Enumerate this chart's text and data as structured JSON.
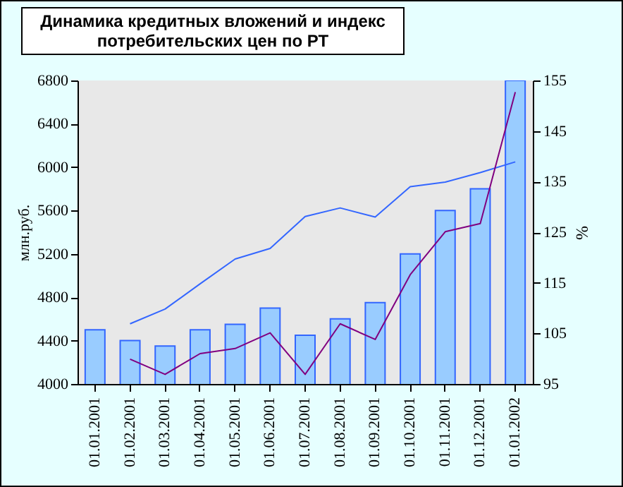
{
  "chart_data": {
    "type": "bar",
    "title": "Динамика кредитных вложений и индекс потребительских цен по РТ",
    "ylabel": "млн.руб.",
    "y2label": "%",
    "categories": [
      "01.01.2001",
      "01.02.2001",
      "01.03.2001",
      "01.04.2001",
      "01.05.2001",
      "01.06.2001",
      "01.07.2001",
      "01.08.2001",
      "01.09.2001",
      "01.10.2001",
      "01.11.2001",
      "01.12.2001",
      "01.01.2002"
    ],
    "series": [
      {
        "color": "#99ccff",
        "values": [
          4500,
          4400,
          4350,
          4500,
          4550,
          4700,
          4450,
          4600,
          4750,
          5200,
          5600,
          5800,
          6800
        ]
      },
      {
        "type": "line",
        "axis": "y2",
        "color": "#3366ff",
        "values": [
          null,
          106.9,
          109.8,
          114.8,
          119.7,
          121.8,
          128.1,
          129.8,
          128.0,
          134.0,
          134.9,
          136.8,
          138.9
        ]
      },
      {
        "type": "line",
        "axis": "y2",
        "color": "#800080",
        "values": [
          null,
          99.9,
          96.9,
          101.0,
          102.0,
          105.1,
          96.9,
          106.9,
          103.8,
          116.6,
          125.1,
          126.7,
          152.7
        ]
      }
    ],
    "ylim": [
      4000,
      6800
    ],
    "yticks": [
      4000,
      4400,
      4800,
      5200,
      5600,
      6000,
      6400,
      6800
    ],
    "y2lim": [
      95,
      155
    ],
    "y2ticks": [
      95,
      105,
      115,
      125,
      135,
      145,
      155
    ],
    "grid": false,
    "legend": false
  }
}
